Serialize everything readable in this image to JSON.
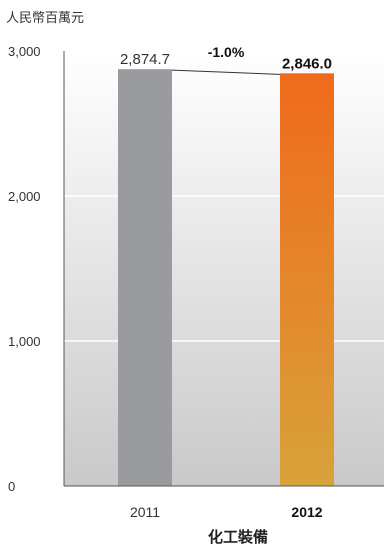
{
  "chart_data": {
    "type": "bar",
    "unit_label": "人民幣百萬元",
    "categories": [
      "2011",
      "2012"
    ],
    "values": [
      2874.7,
      2846.0
    ],
    "value_labels": [
      "2,874.7",
      "2,846.0"
    ],
    "highlight_index": 1,
    "change_label": "-1.0%",
    "xlabel": "化工裝備",
    "ylabel": "",
    "ylim": [
      0,
      3000
    ],
    "yticks": [
      0,
      1000,
      2000,
      3000
    ],
    "ytick_labels": [
      "0",
      "1,000",
      "2,000",
      "3,000"
    ],
    "grid": true,
    "colors": {
      "bar_default": "#9a9b9e",
      "bar_highlight_top": "#f06a1c",
      "bar_highlight_bottom": "#d8a23a",
      "background_top": "#ffffff",
      "background_bottom": "#c9c9c9",
      "axis": "#555555",
      "connector": "#333333"
    }
  }
}
